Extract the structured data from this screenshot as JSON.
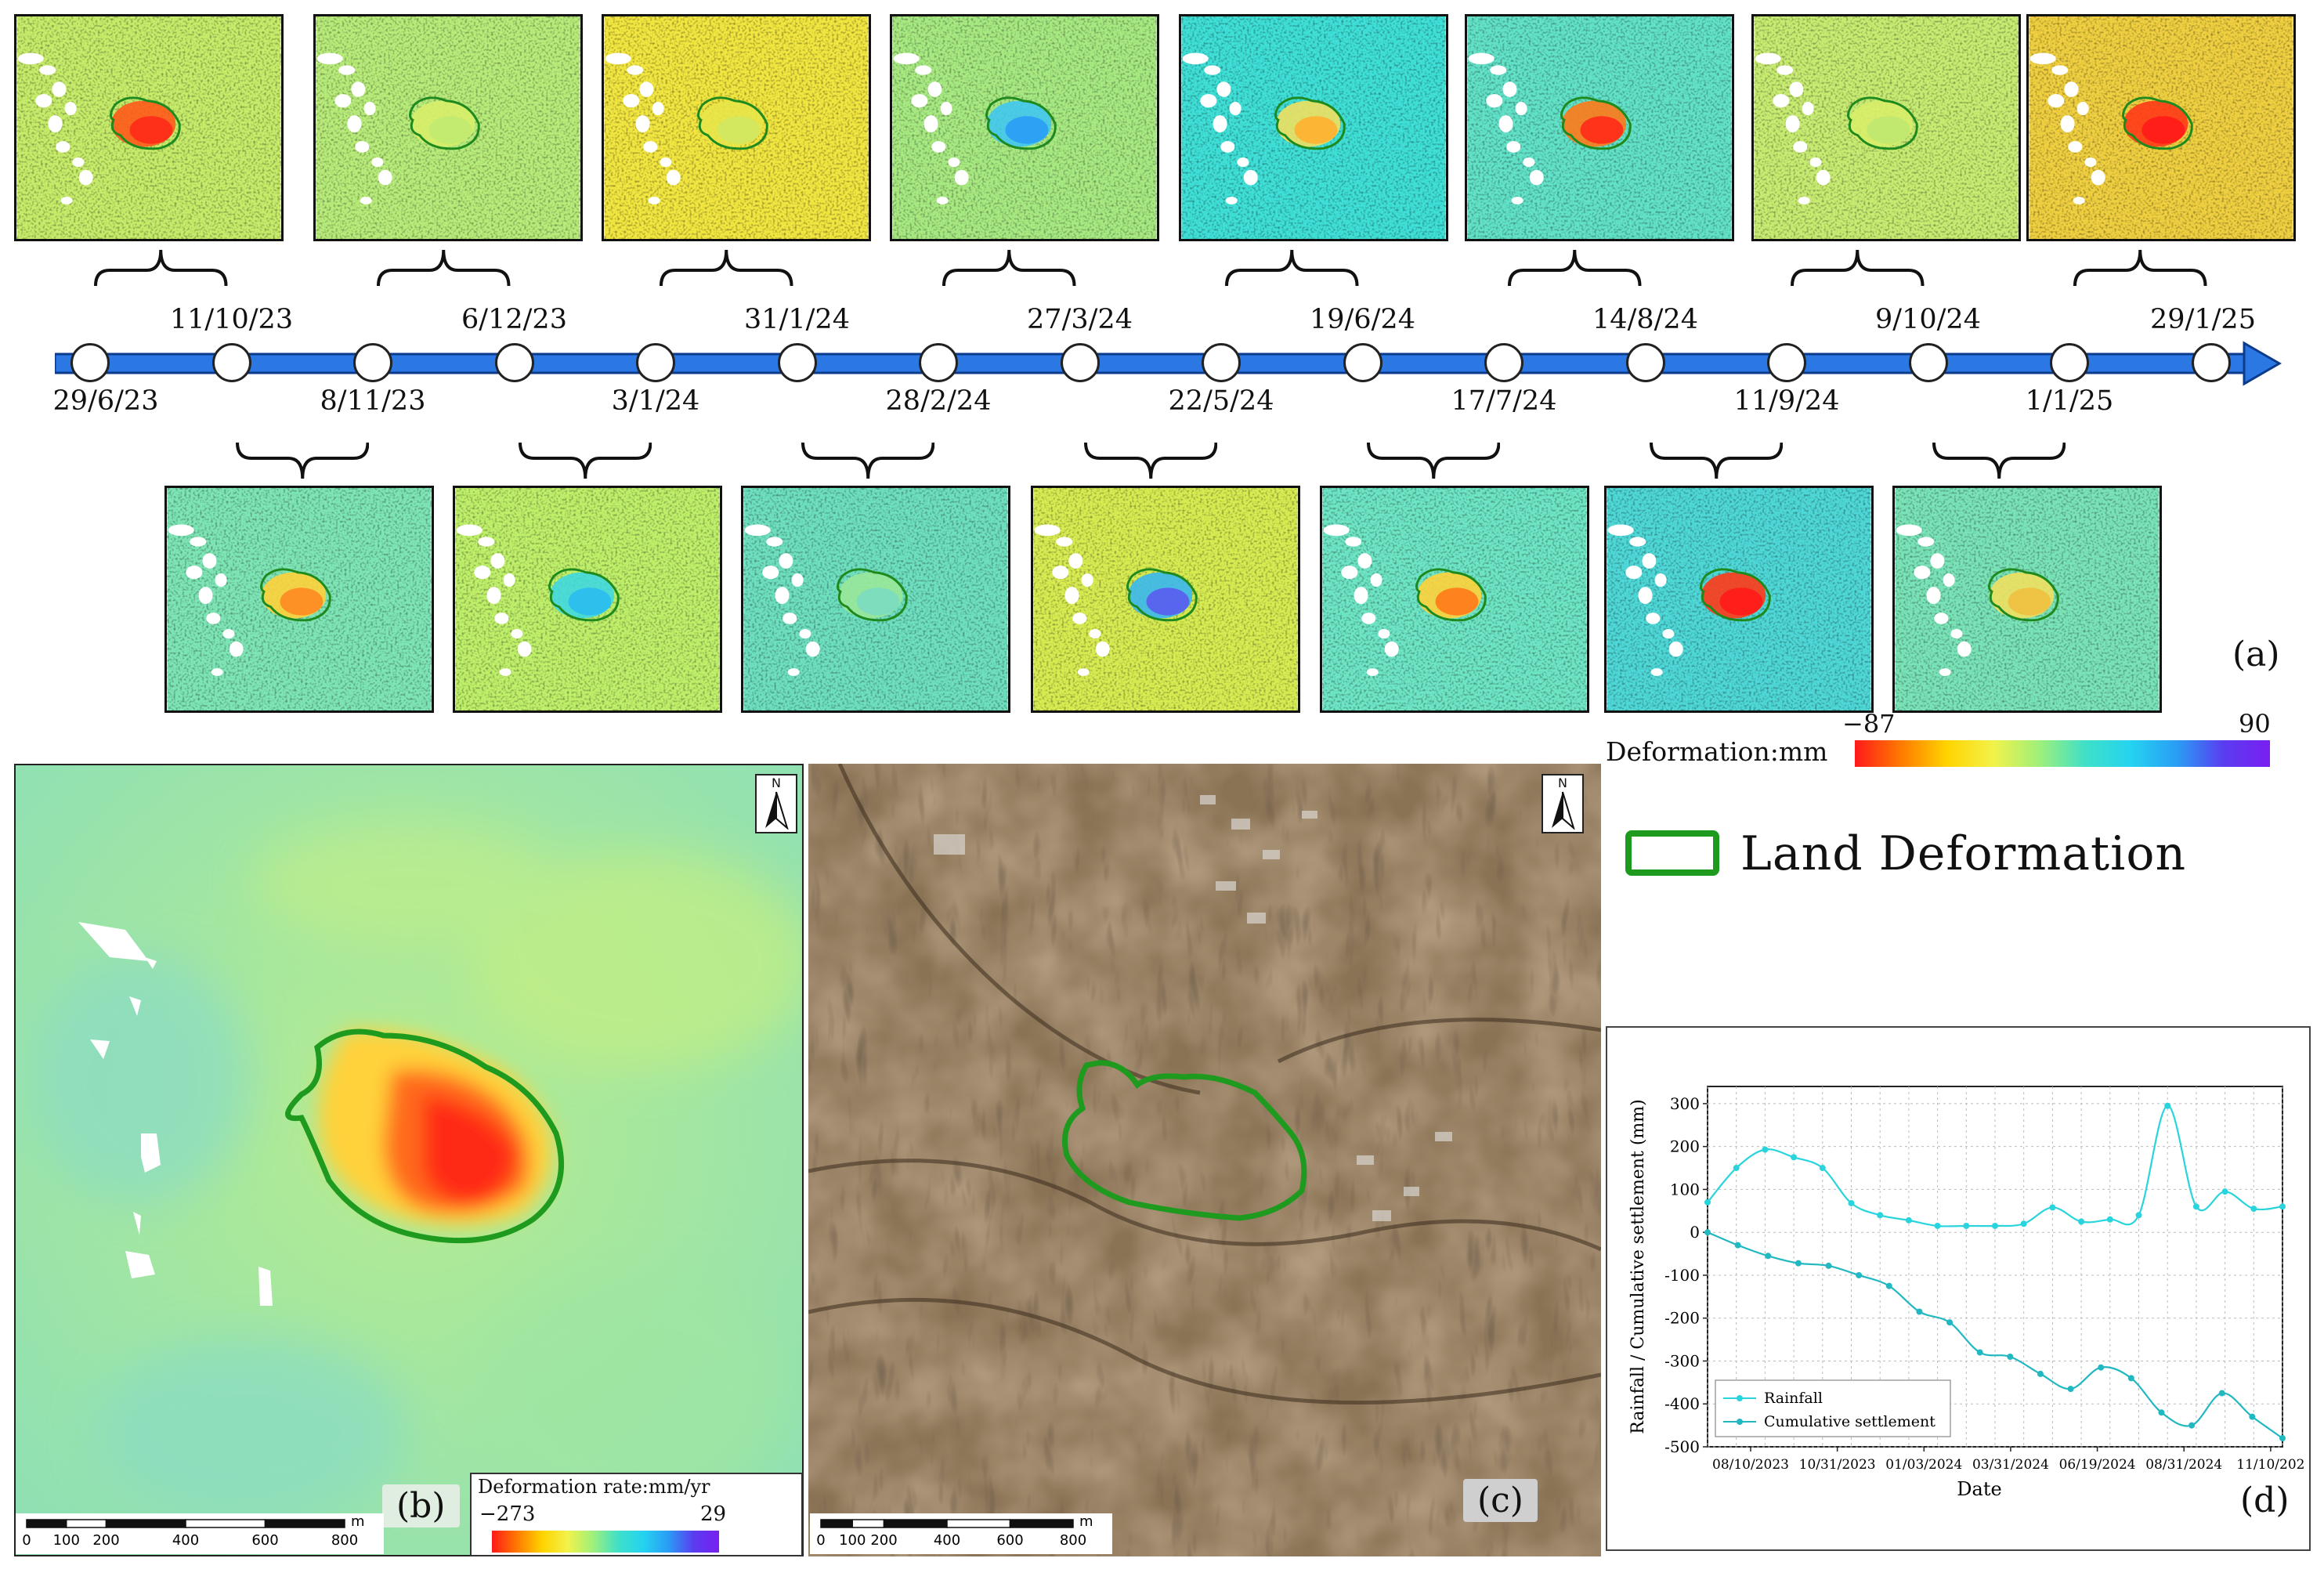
{
  "panel_a": {
    "label": "(a)",
    "dates_top": [
      "11/10/23",
      "6/12/23",
      "31/1/24",
      "27/3/24",
      "19/6/24",
      "14/8/24",
      "9/10/24",
      "29/1/25"
    ],
    "dates_bottom": [
      "29/6/23",
      "8/11/23",
      "3/1/24",
      "28/2/24",
      "22/5/24",
      "17/7/24",
      "11/9/24",
      "1/1/25"
    ],
    "colorbar": {
      "label": "Deformation:mm",
      "min": "−87",
      "max": "90"
    }
  },
  "legend": {
    "label": "Land Deformation",
    "color": "#1e9a1e"
  },
  "panel_b": {
    "label": "(b)",
    "north": "N",
    "colorbar": {
      "label": "Deformation rate:mm/yr",
      "min": "−273",
      "max": "29"
    },
    "scale": {
      "unit": "m",
      "ticks": [
        "0",
        "100",
        "200",
        "400",
        "600",
        "800"
      ]
    }
  },
  "panel_c": {
    "label": "(c)",
    "north": "N",
    "scale": {
      "unit": "m",
      "ticks": [
        "0",
        "100",
        "200",
        "400",
        "600",
        "800"
      ]
    }
  },
  "panel_d": {
    "label": "(d)"
  },
  "chart_data": {
    "type": "line",
    "title": "",
    "xlabel": "Date",
    "ylabel": "Rainfall / Cumulative settlement (mm)",
    "ylim": [
      -500,
      340
    ],
    "yticks": [
      "300",
      "200",
      "100",
      "0",
      "-100",
      "-200",
      "-300",
      "-400",
      "-500"
    ],
    "xtick_labels": [
      "08/10/2023",
      "10/31/2023",
      "01/03/2024",
      "03/31/2024",
      "06/19/2024",
      "08/31/2024",
      "11/10/202"
    ],
    "series": [
      {
        "name": "Rainfall",
        "color": "#2ad4dc",
        "values": [
          70,
          150,
          193,
          175,
          150,
          68,
          40,
          28,
          15,
          15,
          15,
          20,
          58,
          25,
          30,
          40,
          295,
          60,
          95,
          55,
          60
        ]
      },
      {
        "name": "Cumulative settlement",
        "color": "#21b8c2",
        "values": [
          0,
          -30,
          -55,
          -72,
          -78,
          -100,
          -125,
          -185,
          -210,
          -280,
          -290,
          -330,
          -365,
          -315,
          -340,
          -420,
          -450,
          -375,
          -430,
          -480
        ]
      }
    ]
  }
}
